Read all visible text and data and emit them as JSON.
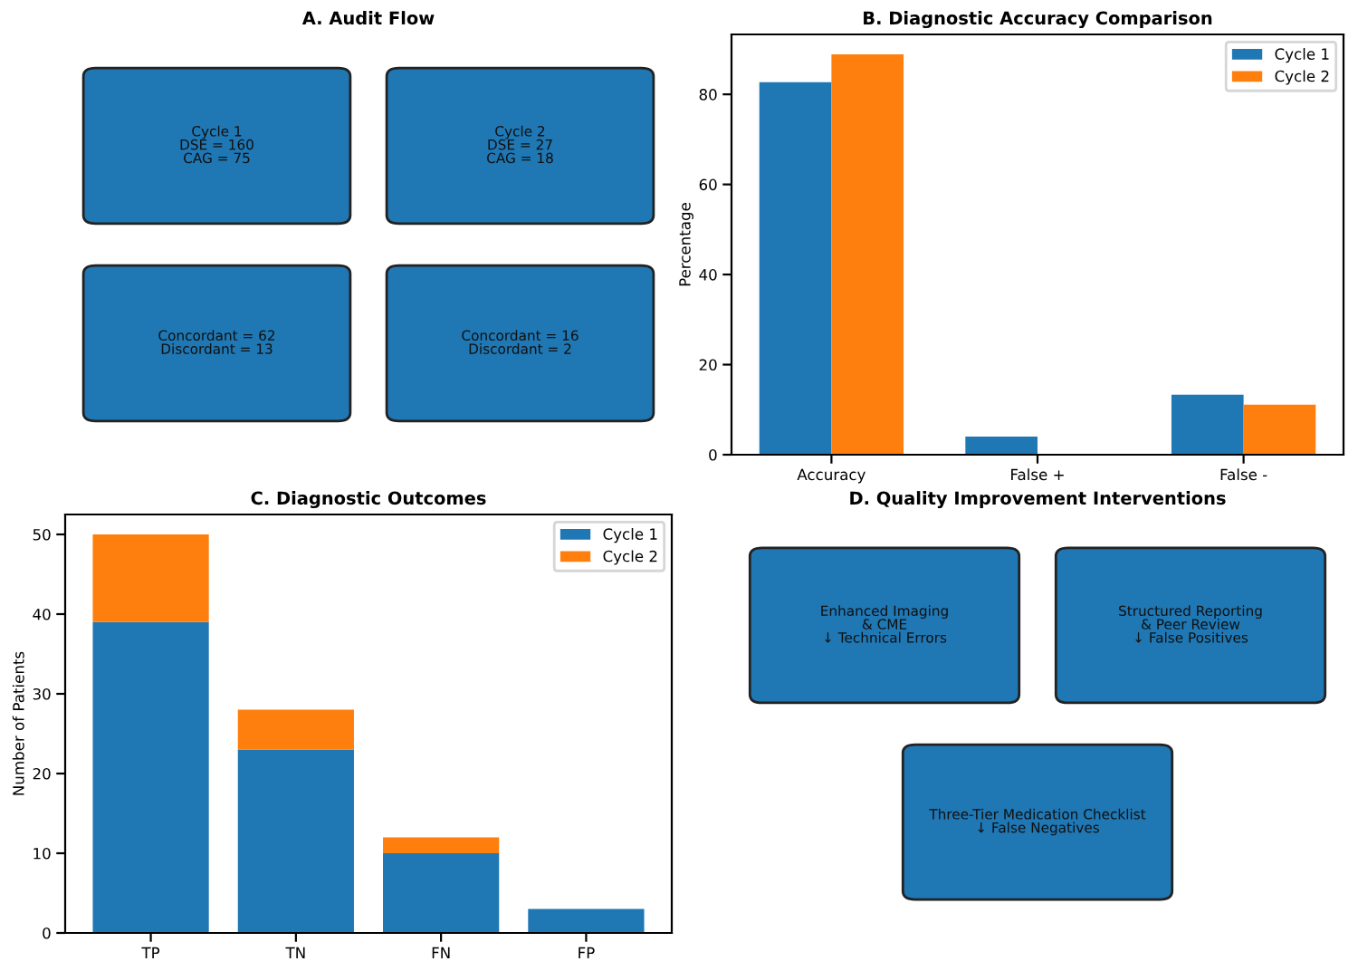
{
  "chart_data": [
    {
      "type": "other",
      "title": "A. Audit Flow",
      "color": "#1f77b4",
      "annotations": [
        "Cycle 1\nDSE = 160\nCAG = 75",
        "Cycle 2\nDSE = 27\nCAG = 18",
        "Concordant = 62\nDiscordant = 13",
        "Concordant = 16\nDiscordant = 2"
      ]
    },
    {
      "type": "bar",
      "title": "B. Diagnostic Accuracy Comparison",
      "ylabel": "Percentage",
      "categories": [
        "Accuracy",
        "False +",
        "False -"
      ],
      "series": [
        {
          "name": "Cycle 1",
          "color": "#1f77b4",
          "values": [
            82.7,
            4.0,
            13.3
          ]
        },
        {
          "name": "Cycle 2",
          "color": "#ff7f0e",
          "values": [
            88.9,
            0,
            11.1
          ]
        }
      ],
      "ylim": [
        0,
        93.3
      ],
      "yticks": [
        0,
        20,
        40,
        60,
        80
      ],
      "legend": "top right",
      "grid": false
    },
    {
      "type": "bar",
      "title": "C. Diagnostic Outcomes",
      "ylabel": "Number of Patients",
      "stacked": true,
      "categories": [
        "TP",
        "TN",
        "FN",
        "FP"
      ],
      "series": [
        {
          "name": "Cycle 1",
          "color": "#1f77b4",
          "values": [
            39,
            23,
            10,
            3
          ]
        },
        {
          "name": "Cycle 2",
          "color": "#ff7f0e",
          "values": [
            11,
            5,
            2,
            0
          ]
        }
      ],
      "ylim": [
        0,
        52.5
      ],
      "yticks": [
        0,
        10,
        20,
        30,
        40,
        50
      ],
      "legend": "top right",
      "grid": false
    },
    {
      "type": "other",
      "title": "D. Quality Improvement Interventions",
      "color": "#1f77b4",
      "annotations": [
        "Enhanced Imaging\n& CME\n↓ Technical Errors",
        "Structured Reporting\n& Peer Review\n↓ False Positives",
        "Three-Tier Medication Checklist\n↓ False Negatives"
      ]
    }
  ]
}
